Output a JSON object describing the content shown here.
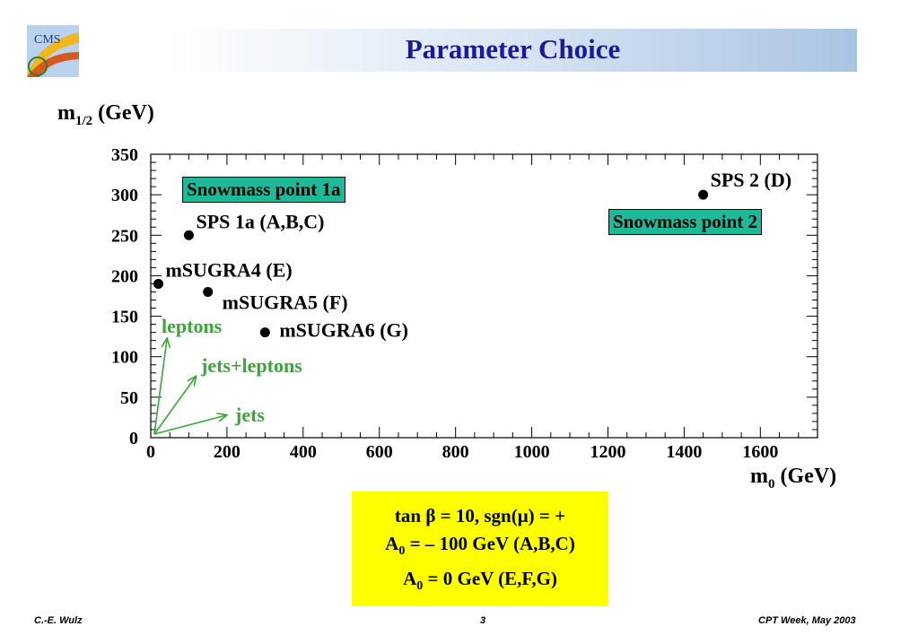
{
  "slide": {
    "title": "Parameter Choice",
    "footer_left": "C.-E. Wulz",
    "footer_center": "3",
    "footer_right": "CPT Week, May 2003"
  },
  "logo": {
    "text": "CMS"
  },
  "axes": {
    "ylabel_main": "m",
    "ylabel_sub": "1/2",
    "ylabel_unit": " (GeV)",
    "xlabel_main": "m",
    "xlabel_sub": "0",
    "xlabel_unit": " (GeV)"
  },
  "boxes": {
    "snowmass_1a": "Snowmass point 1a",
    "snowmass_2": "Snowmass point 2"
  },
  "params": {
    "line1": "tan β  = 10, sgn(μ) = +",
    "line2_main": "A",
    "line2_sub": "0",
    "line2_rest": " = – 100 GeV (A,B,C)",
    "line3_main": "A",
    "line3_sub": "0",
    "line3_rest": " = 0  GeV (E,F,G)"
  },
  "chart_data": {
    "type": "scatter",
    "xlim": [
      0,
      1750
    ],
    "ylim": [
      0,
      350
    ],
    "x_ticks": [
      0,
      200,
      400,
      600,
      800,
      1000,
      1200,
      1400,
      1600
    ],
    "y_ticks": [
      0,
      50,
      100,
      150,
      200,
      250,
      300,
      350
    ],
    "points": [
      {
        "label": "SPS 1a (A,B,C)",
        "x": 100,
        "y": 250
      },
      {
        "label": "mSUGRA4 (E)",
        "x": 20,
        "y": 190
      },
      {
        "label": "mSUGRA5 (F)",
        "x": 150,
        "y": 180
      },
      {
        "label": "mSUGRA6 (G)",
        "x": 300,
        "y": 130
      },
      {
        "label": "SPS 2 (D)",
        "x": 1450,
        "y": 300
      }
    ],
    "arrows": [
      {
        "label": "leptons",
        "color": "#3aa63a"
      },
      {
        "label": "jets+leptons",
        "color": "#3aa63a"
      },
      {
        "label": "jets",
        "color": "#3aa63a"
      }
    ]
  }
}
